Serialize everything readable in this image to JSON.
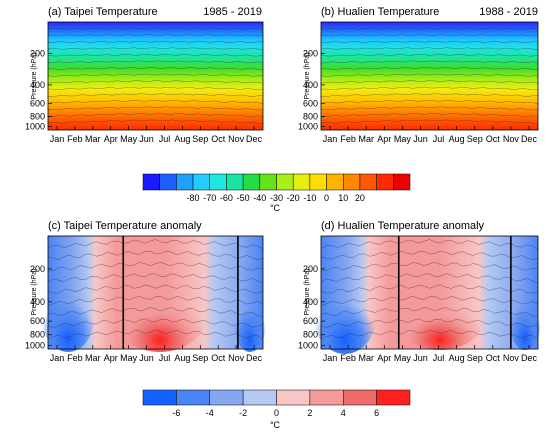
{
  "chart_data": [
    {
      "type": "heatmap",
      "panel": "(a)",
      "title": "(a) Taipei Temperature",
      "period": "1985 - 2019",
      "ylabel": "Pressure (hPa)",
      "xlabel": "",
      "x_ticks": [
        "Jan",
        "Feb",
        "Mar",
        "Apr",
        "May",
        "Jun",
        "Jul",
        "Aug",
        "Sep",
        "Oct",
        "Nov",
        "Dec"
      ],
      "y_ticks": [
        200,
        400,
        600,
        800,
        1000
      ],
      "y_range_hPa": [
        100,
        1000
      ],
      "y_scale": "log",
      "value_range_C": [
        -80,
        28
      ],
      "pattern": "Temperature decreases with height from about 25°C near 1000 hPa to about -75°C at the top; warmest near-surface values in Jun–Sep",
      "legend": "colorbar-below"
    },
    {
      "type": "heatmap",
      "panel": "(b)",
      "title": "(b) Hualien Temperature",
      "period": "1988 - 2019",
      "ylabel": "Pressure (hPa)",
      "xlabel": "",
      "x_ticks": [
        "Jan",
        "Feb",
        "Mar",
        "Apr",
        "May",
        "Jun",
        "Jul",
        "Aug",
        "Sep",
        "Oct",
        "Nov",
        "Dec"
      ],
      "y_ticks": [
        200,
        400,
        600,
        800,
        1000
      ],
      "y_range_hPa": [
        100,
        1000
      ],
      "y_scale": "log",
      "value_range_C": [
        -80,
        28
      ],
      "pattern": "Same structure as Taipei: strong vertical gradient, warmest near surface in summer",
      "legend": "colorbar-below"
    },
    {
      "type": "heatmap",
      "panel": "(c)",
      "title": "(c) Taipei Temperature anomaly",
      "ylabel": "Pressure (hPa)",
      "xlabel": "",
      "x_ticks": [
        "Jan",
        "Feb",
        "Mar",
        "Apr",
        "May",
        "Jun",
        "Jul",
        "Aug",
        "Sep",
        "Oct",
        "Nov",
        "Dec"
      ],
      "y_ticks": [
        200,
        400,
        600,
        800,
        1000
      ],
      "y_scale": "log",
      "value_range_C": [
        -7,
        7
      ],
      "season_divider_months": [
        4.2,
        10.6
      ],
      "pattern": "Negative anomalies Jan–Apr and Nov–Dec, positive anomalies May–Oct peaking near 1000 hPa in Jul–Aug; warm band near 150 hPa in summer",
      "legend": "colorbar-below"
    },
    {
      "type": "heatmap",
      "panel": "(d)",
      "title": "(d) Hualien Temperature anomaly",
      "ylabel": "Pressure (hPa)",
      "xlabel": "",
      "x_ticks": [
        "Jan",
        "Feb",
        "Mar",
        "Apr",
        "May",
        "Jun",
        "Jul",
        "Aug",
        "Sep",
        "Oct",
        "Nov",
        "Dec"
      ],
      "y_ticks": [
        200,
        400,
        600,
        800,
        1000
      ],
      "y_scale": "log",
      "value_range_C": [
        -7,
        7
      ],
      "season_divider_months": [
        4.3,
        10.5
      ],
      "pattern": "Similar to Taipei: cold anomalies in winter months, warm anomalies May–Oct",
      "legend": "colorbar-below"
    }
  ],
  "colorbars": [
    {
      "name": "temperature-colorbar",
      "unit": "°C",
      "labels": [
        "-80",
        "-70",
        "-60",
        "-50",
        "-40",
        "-30",
        "-20",
        "-10",
        "0",
        "10",
        "20"
      ],
      "colors": [
        "#1a1aff",
        "#1f5fff",
        "#1f9fff",
        "#22ccff",
        "#20e6e0",
        "#19e3a0",
        "#22dd44",
        "#66e21a",
        "#aaee1a",
        "#e6ee10",
        "#ffdd00",
        "#ffb300",
        "#ff8800",
        "#ff5a00",
        "#ff2a00",
        "#ee0000"
      ]
    },
    {
      "name": "anomaly-colorbar",
      "unit": "°C",
      "labels": [
        "-6",
        "-4",
        "-2",
        "0",
        "2",
        "4",
        "6"
      ],
      "colors": [
        "#1660ff",
        "#4a84f5",
        "#86a6f0",
        "#b5c9f3",
        "#f7c6c6",
        "#f59a9a",
        "#f06b6b",
        "#ff2020"
      ]
    }
  ],
  "colors": {
    "divider_line": "#000000",
    "contour_line": "#222222"
  }
}
